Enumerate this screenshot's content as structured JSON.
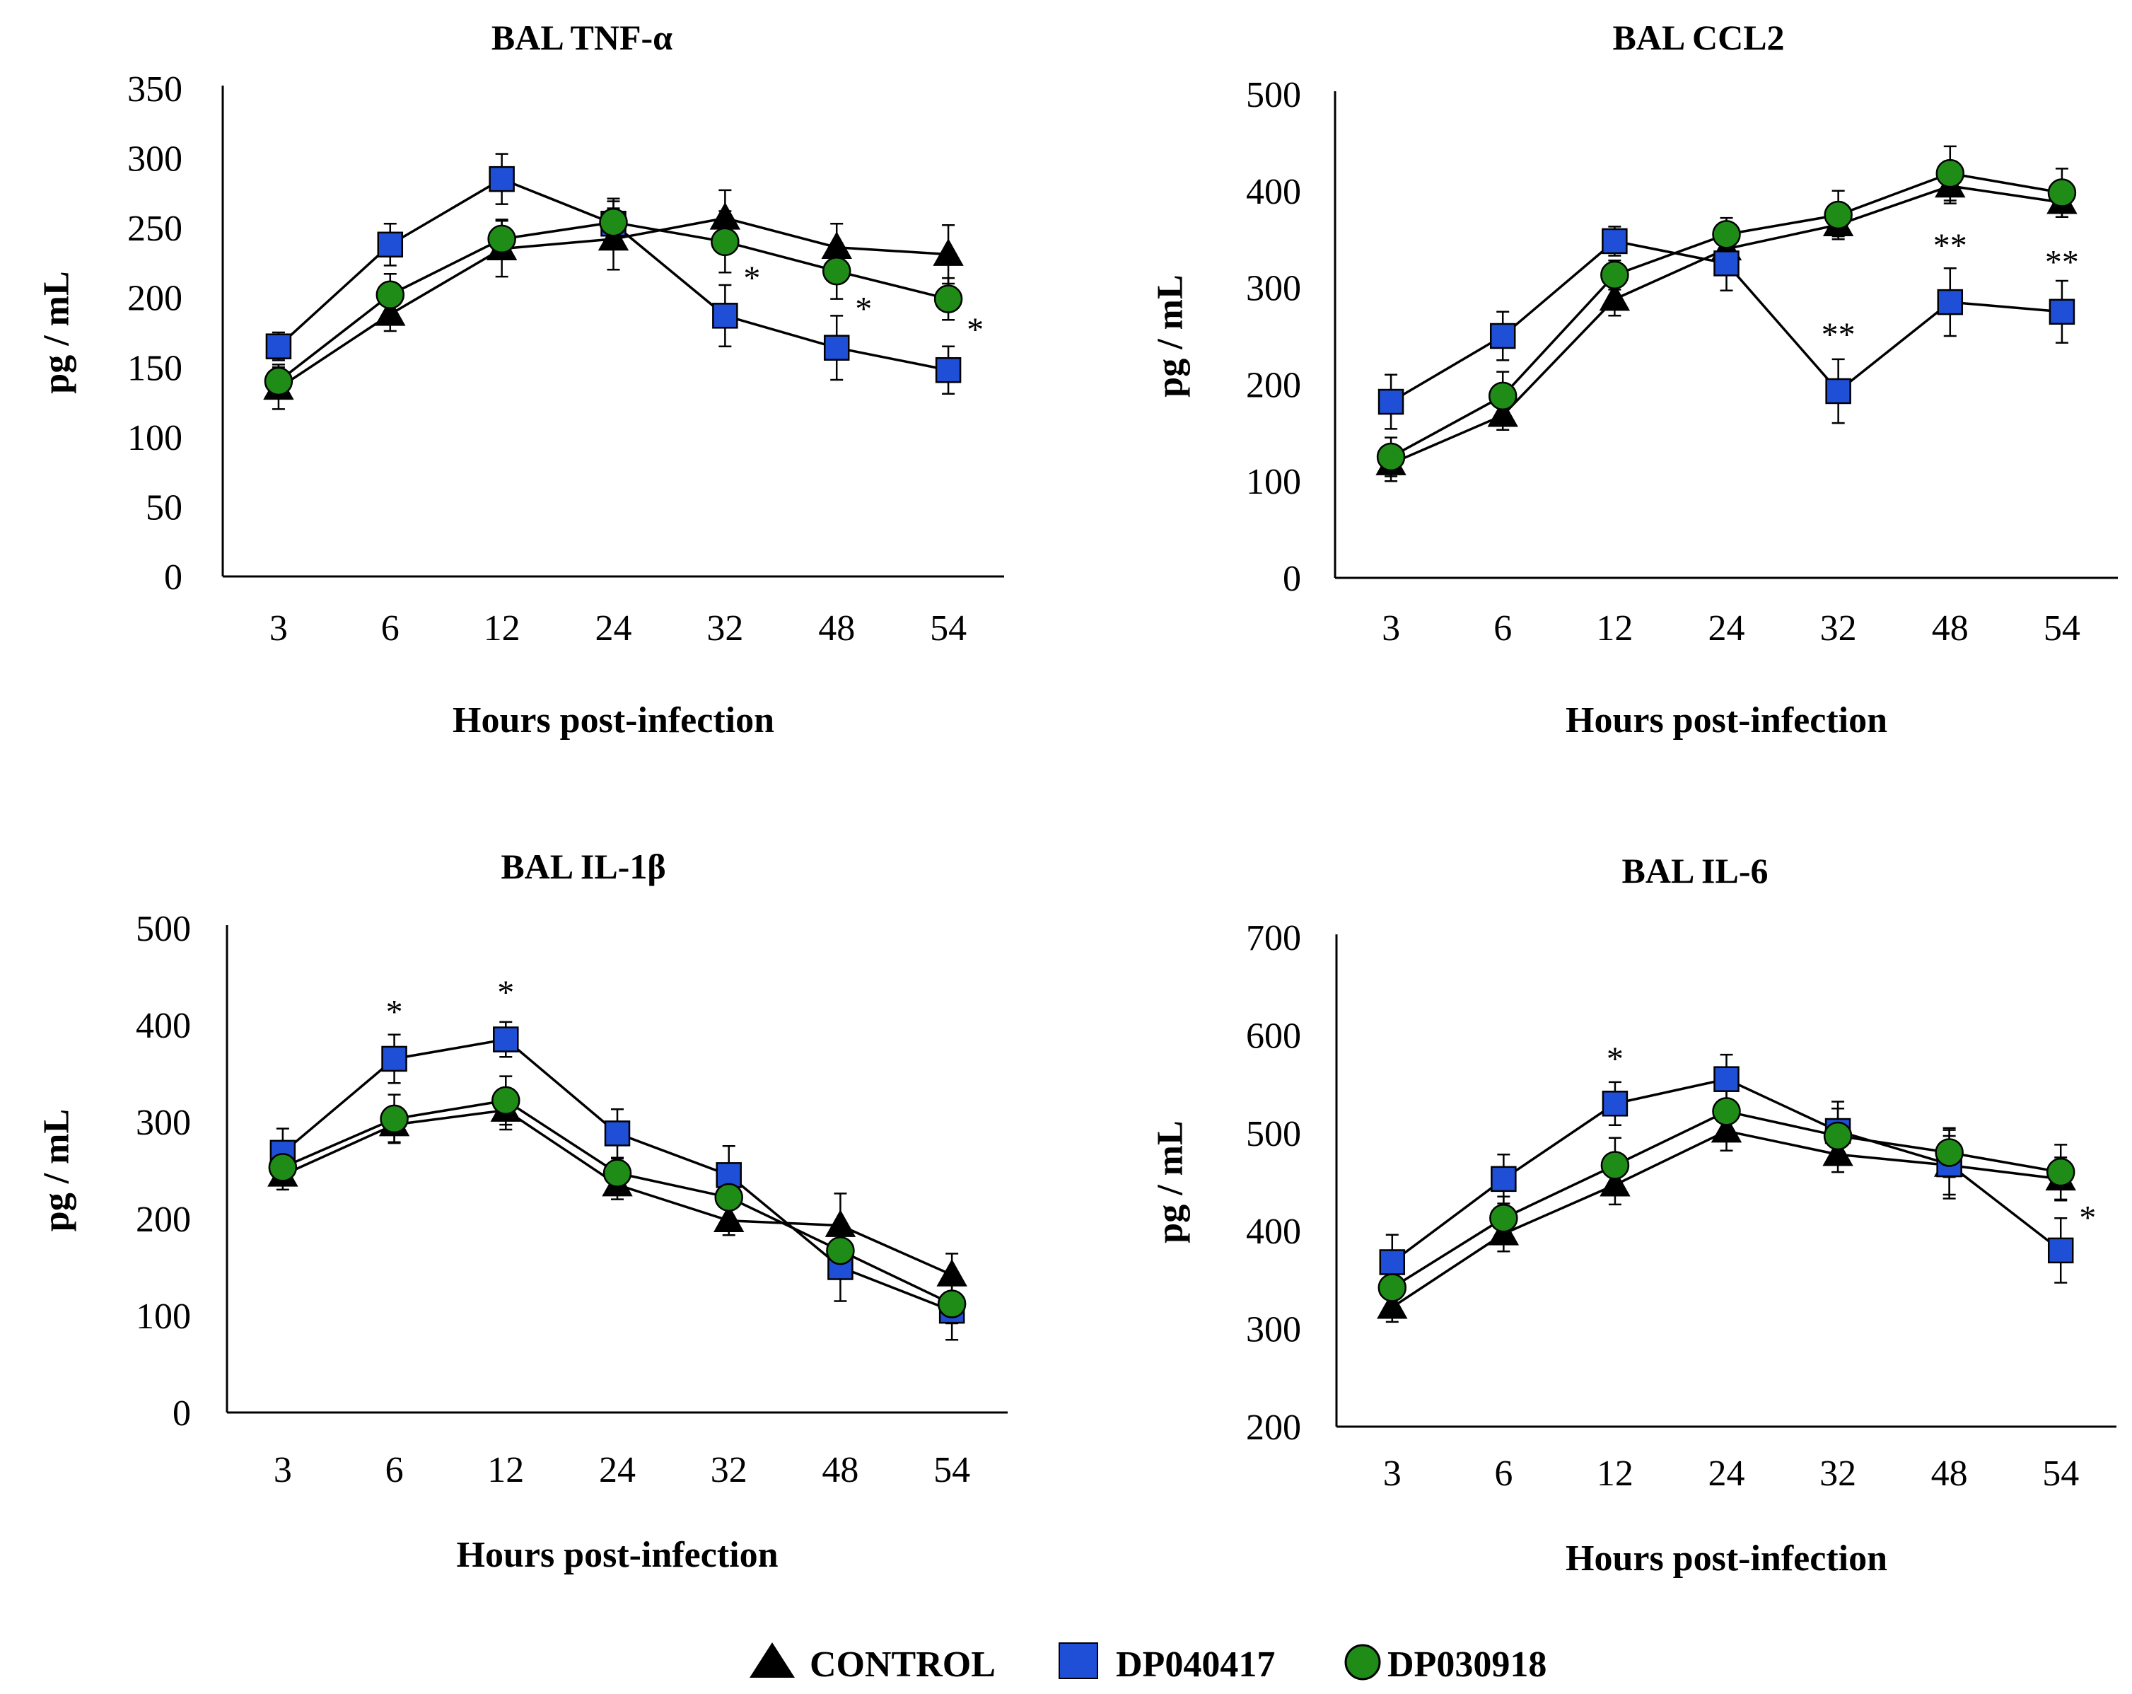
{
  "colors": {
    "CONTROL": "#000000",
    "DP040417": "#1f4fd6",
    "DP030918": "#1e8c16"
  },
  "legend": [
    {
      "name": "CONTROL",
      "marker": "triangle"
    },
    {
      "name": "DP040417",
      "marker": "square"
    },
    {
      "name": "DP030918",
      "marker": "circle"
    }
  ],
  "chart_data": [
    {
      "type": "line",
      "title": "BAL TNF-α",
      "xlabel": "Hours post-infection",
      "ylabel": "pg / mL",
      "categories": [
        "3",
        "6",
        "12",
        "24",
        "32",
        "48",
        "54"
      ],
      "ylim": [
        0,
        350
      ],
      "yticks": [
        0,
        50,
        100,
        150,
        200,
        250,
        300,
        350
      ],
      "series": [
        {
          "name": "CONTROL",
          "values": [
            135,
            188,
            235,
            242,
            257,
            236,
            231
          ],
          "errors": [
            15,
            12,
            20,
            22,
            20,
            17,
            21
          ]
        },
        {
          "name": "DP040417",
          "values": [
            165,
            238,
            285,
            253,
            187,
            164,
            148
          ],
          "errors": [
            10,
            15,
            18,
            18,
            22,
            23,
            17
          ]
        },
        {
          "name": "DP030918",
          "values": [
            140,
            202,
            242,
            254,
            240,
            219,
            199
          ],
          "errors": [
            12,
            15,
            14,
            15,
            22,
            20,
            15
          ]
        }
      ],
      "annotations": [
        {
          "text": "*",
          "category": "32",
          "value": 215
        },
        {
          "text": "*",
          "category": "48",
          "value": 193
        },
        {
          "text": "*",
          "category": "54",
          "value": 178
        }
      ]
    },
    {
      "type": "line",
      "title": "BAL CCL2",
      "xlabel": "Hours post-infection",
      "ylabel": "pg / mL",
      "categories": [
        "3",
        "6",
        "12",
        "24",
        "32",
        "48",
        "54"
      ],
      "ylim": [
        0,
        500
      ],
      "yticks": [
        0,
        100,
        200,
        300,
        400,
        500
      ],
      "series": [
        {
          "name": "CONTROL",
          "values": [
            118,
            168,
            288,
            340,
            365,
            405,
            388
          ],
          "errors": [
            18,
            15,
            17,
            18,
            12,
            18,
            15
          ]
        },
        {
          "name": "DP040417",
          "values": [
            182,
            250,
            348,
            325,
            193,
            285,
            275
          ],
          "errors": [
            28,
            25,
            15,
            28,
            33,
            35,
            32
          ]
        },
        {
          "name": "DP030918",
          "values": [
            125,
            188,
            313,
            355,
            375,
            418,
            398
          ],
          "errors": [
            20,
            25,
            15,
            17,
            25,
            28,
            25
          ]
        }
      ],
      "annotations": [
        {
          "text": "**",
          "category": "32",
          "value": 253
        },
        {
          "text": "**",
          "category": "48",
          "value": 345
        },
        {
          "text": "**",
          "category": "54",
          "value": 328
        }
      ]
    },
    {
      "type": "line",
      "title": "BAL IL-1β",
      "xlabel": "Hours post-infection",
      "ylabel": "pg / mL",
      "categories": [
        "3",
        "6",
        "12",
        "24",
        "32",
        "48",
        "54"
      ],
      "ylim": [
        0,
        500
      ],
      "yticks": [
        0,
        100,
        200,
        300,
        400,
        500
      ],
      "series": [
        {
          "name": "CONTROL",
          "values": [
            245,
            297,
            312,
            235,
            198,
            193,
            142
          ],
          "errors": [
            15,
            18,
            20,
            15,
            15,
            33,
            22
          ]
        },
        {
          "name": "DP040417",
          "values": [
            268,
            365,
            385,
            288,
            245,
            150,
            105
          ],
          "errors": [
            25,
            25,
            18,
            25,
            30,
            35,
            30
          ]
        },
        {
          "name": "DP030918",
          "values": [
            253,
            303,
            322,
            247,
            222,
            167,
            112
          ],
          "errors": [
            15,
            25,
            25,
            15,
            20,
            25,
            20
          ]
        }
      ],
      "annotations": [
        {
          "text": "*",
          "category": "6",
          "value": 415
        },
        {
          "text": "*",
          "category": "12",
          "value": 435
        }
      ]
    },
    {
      "type": "line",
      "title": "BAL IL-6",
      "xlabel": "Hours post-infection",
      "ylabel": "pg / mL",
      "categories": [
        "3",
        "6",
        "12",
        "24",
        "32",
        "48",
        "54"
      ],
      "ylim": [
        200,
        700
      ],
      "yticks": [
        200,
        300,
        400,
        500,
        600,
        700
      ],
      "series": [
        {
          "name": "CONTROL",
          "values": [
            322,
            397,
            447,
            502,
            478,
            467,
            453
          ],
          "errors": [
            15,
            18,
            20,
            20,
            18,
            30,
            22
          ]
        },
        {
          "name": "DP040417",
          "values": [
            368,
            453,
            530,
            555,
            502,
            468,
            380
          ],
          "errors": [
            28,
            25,
            22,
            25,
            30,
            35,
            33
          ]
        },
        {
          "name": "DP030918",
          "values": [
            342,
            413,
            467,
            522,
            497,
            480,
            460
          ],
          "errors": [
            20,
            22,
            28,
            25,
            28,
            25,
            28
          ]
        }
      ],
      "annotations": [
        {
          "text": "*",
          "category": "12",
          "value": 577
        },
        {
          "text": "*",
          "category": "54",
          "value": 415
        }
      ]
    }
  ]
}
